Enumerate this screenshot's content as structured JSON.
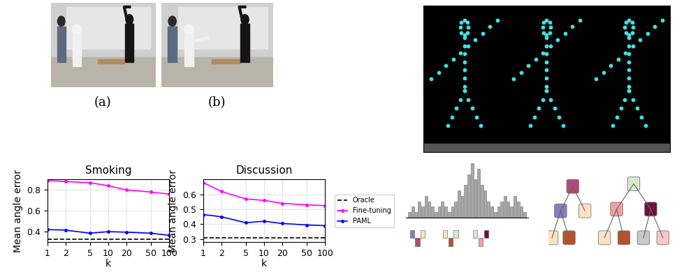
{
  "captions": [
    "(a)",
    "(b)"
  ],
  "chart_data": [
    {
      "type": "line",
      "title": "Smoking",
      "x_label": "k",
      "y_label": "Mean angle error",
      "x": [
        1,
        2,
        5,
        10,
        20,
        50,
        100
      ],
      "log": "x",
      "xlim": [
        1,
        100
      ],
      "xticks": [
        1,
        2,
        5,
        10,
        20,
        50,
        100
      ],
      "ylim": [
        0.3,
        0.9
      ],
      "yticks": [
        0.4,
        0.6,
        0.8
      ],
      "grid": true,
      "series": [
        {
          "name": "Oracle",
          "color": "#000000",
          "line_style": "dashed",
          "values": [
            0.33,
            0.33,
            0.33,
            0.33,
            0.33,
            0.33,
            0.33
          ]
        },
        {
          "name": "Fine-tuning",
          "color": "#ff00ff",
          "line_style": "solid",
          "marker": "o",
          "values": [
            0.89,
            0.88,
            0.87,
            0.84,
            0.8,
            0.78,
            0.76
          ]
        },
        {
          "name": "PAML",
          "color": "#0000ff",
          "line_style": "solid",
          "marker": "o",
          "values": [
            0.42,
            0.415,
            0.385,
            0.4,
            0.395,
            0.385,
            0.365
          ]
        }
      ]
    },
    {
      "type": "line",
      "title": "Discussion",
      "x_label": "k",
      "y_label": "Mean angle error",
      "x": [
        1,
        2,
        5,
        10,
        20,
        50,
        100
      ],
      "log": "x",
      "xlim": [
        1,
        100
      ],
      "xticks": [
        1,
        2,
        5,
        10,
        20,
        50,
        100
      ],
      "ylim": [
        0.28,
        0.7
      ],
      "yticks": [
        0.3,
        0.4,
        0.5,
        0.6
      ],
      "grid": true,
      "legend": "right",
      "series": [
        {
          "name": "Oracle",
          "color": "#000000",
          "line_style": "dashed",
          "values": [
            0.31,
            0.31,
            0.31,
            0.31,
            0.31,
            0.31,
            0.31
          ]
        },
        {
          "name": "Fine-tuning",
          "color": "#ff00ff",
          "line_style": "solid",
          "marker": "o",
          "values": [
            0.68,
            0.62,
            0.57,
            0.56,
            0.54,
            0.53,
            0.525
          ]
        },
        {
          "name": "PAML",
          "color": "#0000ff",
          "line_style": "solid",
          "marker": "o",
          "values": [
            0.465,
            0.45,
            0.41,
            0.42,
            0.405,
            0.395,
            0.39
          ]
        }
      ]
    },
    {
      "type": "bar",
      "color": "#a8a8a8",
      "ylim": [
        0,
        10
      ],
      "tick_labels": false,
      "values": [
        1,
        2,
        1,
        3,
        2,
        4,
        3,
        2,
        1,
        2,
        3,
        2,
        1,
        2,
        3,
        5,
        4,
        6,
        8,
        10,
        7,
        9,
        6,
        5,
        3,
        2,
        1,
        2,
        3,
        4,
        3,
        2,
        4,
        3,
        2,
        1
      ]
    }
  ]
}
